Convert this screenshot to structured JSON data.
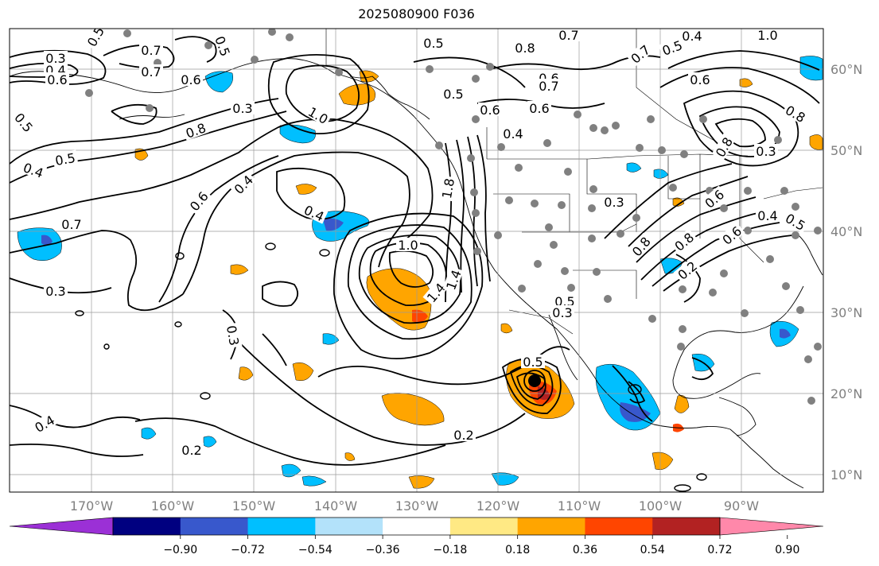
{
  "title": "2025080900 F036",
  "map": {
    "lon_labels": [
      "170°W",
      "160°W",
      "150°W",
      "140°W",
      "130°W",
      "120°W",
      "110°W",
      "100°W",
      "90°W"
    ],
    "lat_labels": [
      "60°N",
      "50°N",
      "40°N",
      "30°N",
      "20°N",
      "10°N"
    ],
    "contour_labels": [
      "0.3",
      "0.4",
      "0.6",
      "0.5",
      "0.7",
      "0.5",
      "0.7",
      "0.6",
      "0.5",
      "0.5",
      "1.0",
      "0.4",
      "0.5",
      "0.8",
      "0.7",
      "0.6",
      "0.7",
      "0.5",
      "0.6",
      "0.6",
      "0.5",
      "0.4",
      "0.8",
      "0.8",
      "0.7",
      "0.6",
      "1.0",
      "0.5",
      "0.6",
      "0.4",
      "0.7",
      "0.4",
      "0.8",
      "0.3",
      "0.6",
      "1.8",
      "1.0",
      "1.4",
      "1.4",
      "0.4",
      "0.3",
      "0.6",
      "0.8",
      "0.8",
      "0.2",
      "0.3",
      "0.5",
      "0.5",
      "0.3",
      "0.2",
      "0.2",
      "0.3",
      "0.4",
      "0.3",
      "0.4"
    ],
    "colors": {
      "contour": "#000000",
      "grid": "#9a9a9a",
      "coast": "#000000",
      "station": "#808080",
      "axis_label": "#808080"
    }
  },
  "colorbar": {
    "ticks": [
      "−0.90",
      "−0.72",
      "−0.54",
      "−0.36",
      "−0.18",
      "0.18",
      "0.36",
      "0.54",
      "0.72",
      "0.90"
    ],
    "colors": [
      "#9b30d6",
      "#000080",
      "#3858cc",
      "#00bfff",
      "#b3e2fa",
      "#ffffff",
      "#ffe984",
      "#ffa500",
      "#ff4500",
      "#b22222",
      "#ff88aa"
    ]
  }
}
